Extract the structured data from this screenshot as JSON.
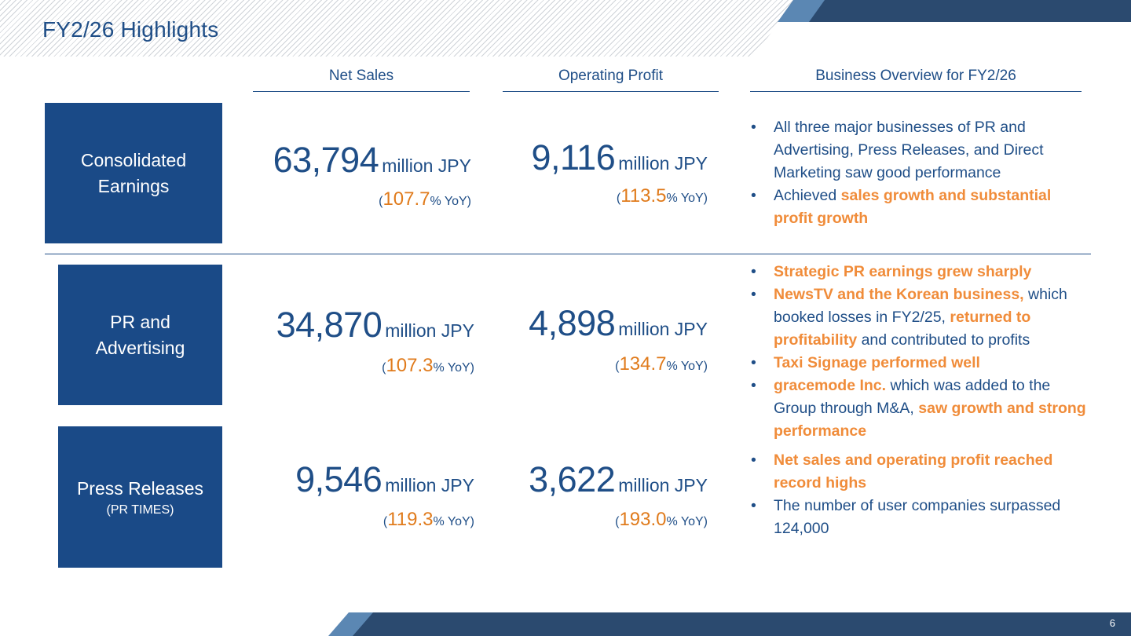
{
  "slide": {
    "title": "FY2/26 Highlights",
    "page_number": "6"
  },
  "columns": {
    "net_sales": "Net Sales",
    "operating_profit": "Operating Profit",
    "overview": "Business Overview for FY2/26"
  },
  "yoy_format": {
    "open": "(",
    "suffix": "% YoY)"
  },
  "segments": {
    "consolidated": {
      "label_lines": [
        "Consolidated",
        "Earnings"
      ],
      "net_sales": {
        "value": "63,794",
        "unit": "million JPY",
        "yoy": "107.7"
      },
      "operating_profit": {
        "value": "9,116",
        "unit": "million JPY",
        "yoy": "113.5"
      },
      "bullets": [
        [
          {
            "text": "All three major businesses of PR and Advertising, Press Releases, and Direct Marketing saw good performance",
            "highlight": false
          }
        ],
        [
          {
            "text": "Achieved ",
            "highlight": false
          },
          {
            "text": "sales growth and substantial profit growth",
            "highlight": true
          }
        ]
      ]
    },
    "pr_advertising": {
      "label_lines": [
        "PR and",
        "Advertising"
      ],
      "net_sales": {
        "value": "34,870",
        "unit": "million JPY",
        "yoy": "107.3"
      },
      "operating_profit": {
        "value": "4,898",
        "unit": "million JPY",
        "yoy": "134.7"
      },
      "bullets": [
        [
          {
            "text": "Strategic PR earnings grew sharply",
            "highlight": true
          }
        ],
        [
          {
            "text": "NewsTV and the Korean business,",
            "highlight": true
          },
          {
            "text": " which booked losses in FY2/25, ",
            "highlight": false
          },
          {
            "text": "returned to profitability",
            "highlight": true
          },
          {
            "text": " and contributed to profits",
            "highlight": false
          }
        ],
        [
          {
            "text": "Taxi Signage performed well",
            "highlight": true
          }
        ],
        [
          {
            "text": "gracemode Inc.",
            "highlight": true
          },
          {
            "text": " which was added to the Group through M&A, ",
            "highlight": false
          },
          {
            "text": "saw growth and strong performance",
            "highlight": true
          }
        ]
      ]
    },
    "press_releases": {
      "label_lines": [
        "Press Releases"
      ],
      "sub_label": "(PR TIMES)",
      "net_sales": {
        "value": "9,546",
        "unit": "million JPY",
        "yoy": "119.3"
      },
      "operating_profit": {
        "value": "3,622",
        "unit": "million JPY",
        "yoy": "193.0"
      },
      "bullets": [
        [
          {
            "text": "Net sales and operating profit reached record highs",
            "highlight": true
          }
        ],
        [
          {
            "text": "The number of user companies surpassed 124,000",
            "highlight": false
          }
        ]
      ]
    }
  },
  "colors": {
    "navy": "#1a4a87",
    "text_blue": "#1f4e87",
    "orange_highlight": "#f08c3a",
    "orange_yoy": "#e07b1c",
    "band_dark": "#2b4a6f",
    "band_light": "#5b87b3"
  }
}
